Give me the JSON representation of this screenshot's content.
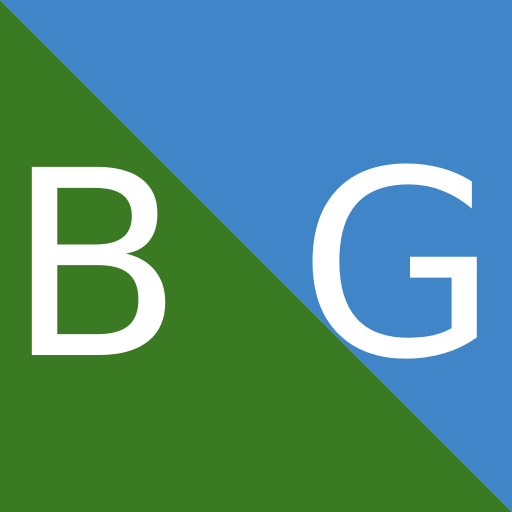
{
  "icon": {
    "letters": {
      "left": "B",
      "right": "G"
    },
    "colors": {
      "green": "#3A7A22",
      "blue": "#3F85C8",
      "letter": "#FFFFFF"
    }
  }
}
